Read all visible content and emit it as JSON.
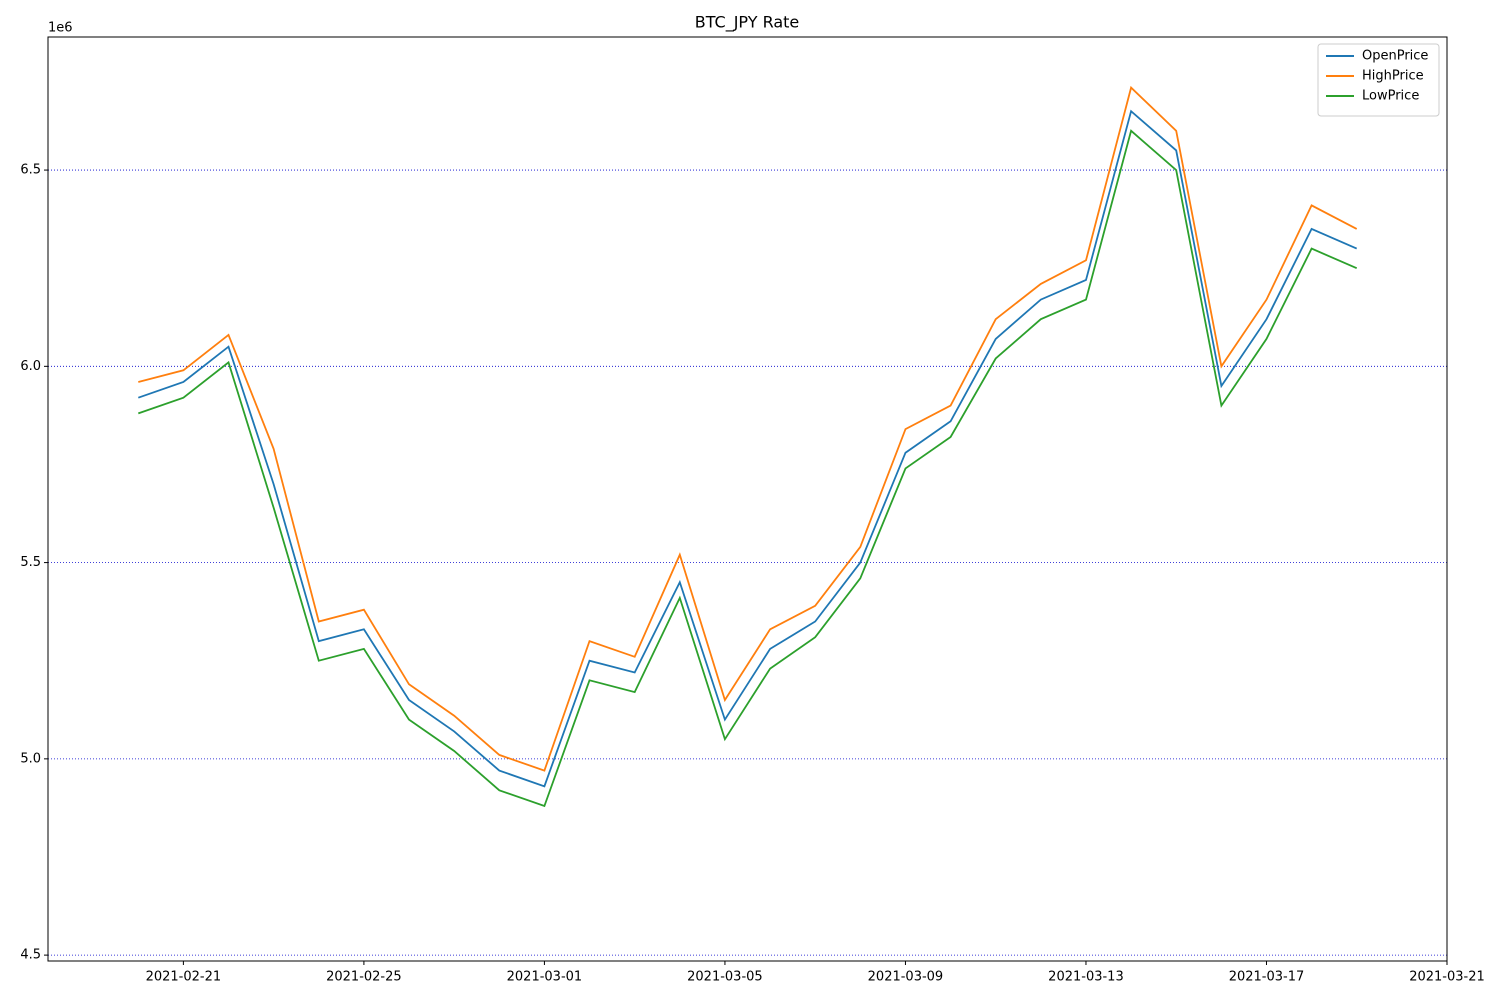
{
  "chart_data": {
    "type": "line",
    "title": "BTC_JPY Rate",
    "y_offset_label": "1e6",
    "x": [
      "2021-02-20",
      "2021-02-21",
      "2021-02-22",
      "2021-02-23",
      "2021-02-24",
      "2021-02-25",
      "2021-02-26",
      "2021-02-27",
      "2021-02-28",
      "2021-03-01",
      "2021-03-02",
      "2021-03-03",
      "2021-03-04",
      "2021-03-05",
      "2021-03-06",
      "2021-03-07",
      "2021-03-08",
      "2021-03-09",
      "2021-03-10",
      "2021-03-11",
      "2021-03-12",
      "2021-03-13",
      "2021-03-14",
      "2021-03-15",
      "2021-03-16",
      "2021-03-17",
      "2021-03-18",
      "2021-03-19"
    ],
    "series": [
      {
        "name": "OpenPrice",
        "color": "#1f77b4",
        "values": [
          5920000,
          5960000,
          6050000,
          5700000,
          5300000,
          5330000,
          5150000,
          5070000,
          4970000,
          4930000,
          5250000,
          5220000,
          5450000,
          5100000,
          5280000,
          5350000,
          5500000,
          5780000,
          5860000,
          6070000,
          6170000,
          6220000,
          6650000,
          6550000,
          5950000,
          6120000,
          6350000,
          6300000
        ]
      },
      {
        "name": "HighPrice",
        "color": "#ff7f0e",
        "values": [
          5960000,
          5990000,
          6080000,
          5790000,
          5350000,
          5380000,
          5190000,
          5110000,
          5010000,
          4970000,
          5300000,
          5260000,
          5520000,
          5150000,
          5330000,
          5390000,
          5540000,
          5840000,
          5900000,
          6120000,
          6210000,
          6270000,
          6710000,
          6600000,
          6000000,
          6170000,
          6410000,
          6350000
        ]
      },
      {
        "name": "LowPrice",
        "color": "#2ca02c",
        "values": [
          5880000,
          5920000,
          6010000,
          5640000,
          5250000,
          5280000,
          5100000,
          5020000,
          4920000,
          4880000,
          5200000,
          5170000,
          5410000,
          5050000,
          5230000,
          5310000,
          5460000,
          5740000,
          5820000,
          6020000,
          6120000,
          6170000,
          6600000,
          6500000,
          5900000,
          6070000,
          6300000,
          6250000
        ]
      }
    ],
    "xlim": [
      "2021-02-18",
      "2021-03-21"
    ],
    "xticks": [
      "2021-02-21",
      "2021-02-25",
      "2021-03-01",
      "2021-03-05",
      "2021-03-09",
      "2021-03-13",
      "2021-03-17",
      "2021-03-21"
    ],
    "ylim": [
      4485000,
      6839000
    ],
    "yticks": [
      {
        "value": 4500000,
        "label": "4.5"
      },
      {
        "value": 5000000,
        "label": "5.0"
      },
      {
        "value": 5500000,
        "label": "5.5"
      },
      {
        "value": 6000000,
        "label": "6.0"
      },
      {
        "value": 6500000,
        "label": "6.5"
      }
    ],
    "grid": true,
    "grid_axis": "y",
    "grid_color": "#0000cc",
    "legend_position": "upper right"
  }
}
